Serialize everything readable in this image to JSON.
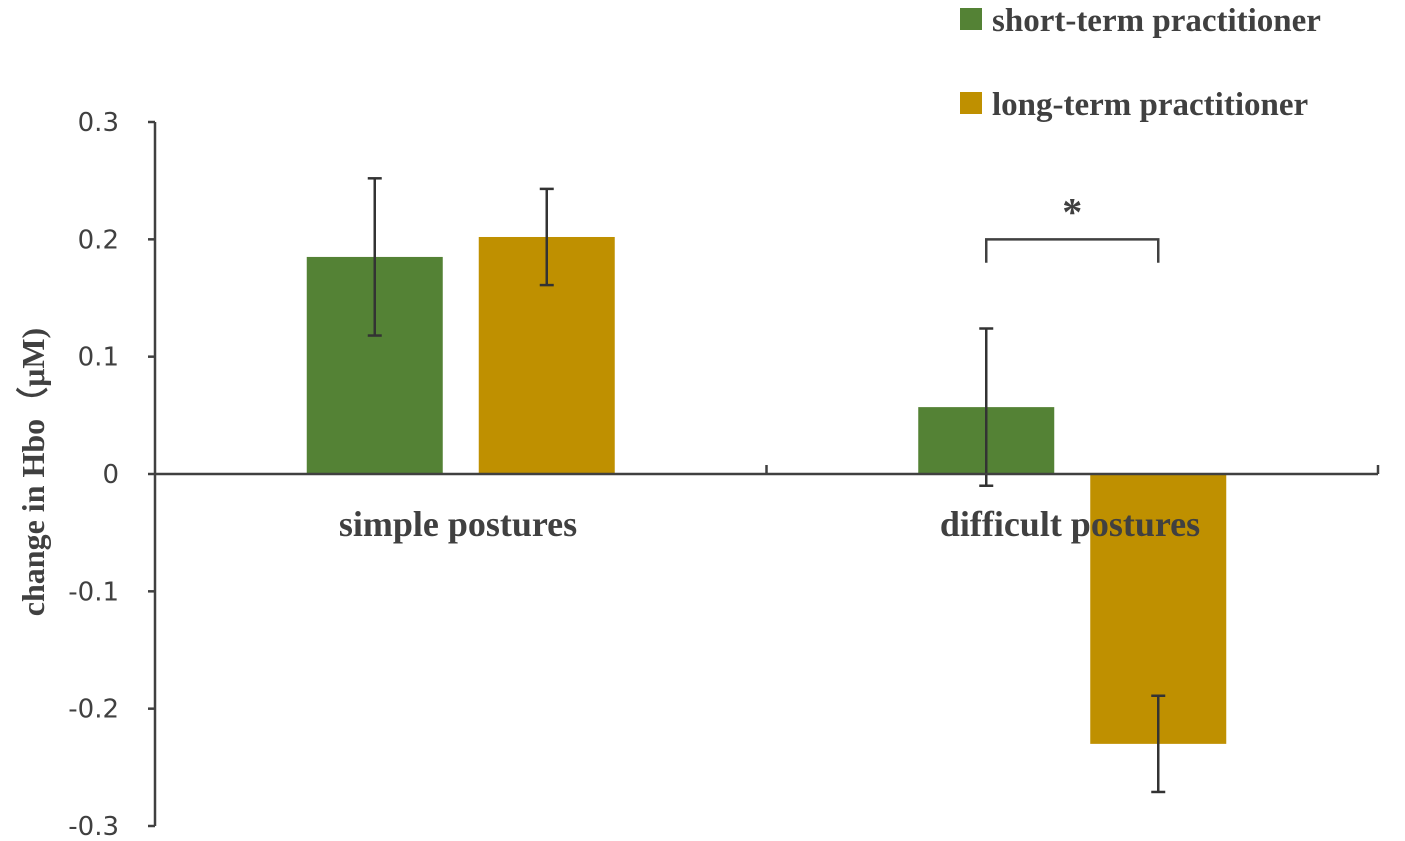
{
  "chart_data": {
    "type": "bar",
    "categories": [
      "simple postures",
      "difficult postures"
    ],
    "series": [
      {
        "name": "short-term practitioner",
        "color": "#548235",
        "values": [
          0.185,
          0.057
        ],
        "error": [
          0.067,
          0.067
        ]
      },
      {
        "name": "long-term practitioner",
        "color": "#BF9000",
        "values": [
          0.202,
          -0.23
        ],
        "error": [
          0.041,
          0.041
        ]
      }
    ],
    "ylabel": "change in Hbo（μM)",
    "xlabel": "",
    "ylim": [
      -0.3,
      0.3
    ],
    "yticks": [
      "0.3",
      "0.2",
      "0.1",
      "0",
      "-0.1",
      "-0.2",
      "-0.3"
    ],
    "ytick_values": [
      0.3,
      0.2,
      0.1,
      0,
      -0.1,
      -0.2,
      -0.3
    ],
    "legend_position": "top-right",
    "grid": false,
    "annotations": [
      {
        "text": "*",
        "category": "difficult postures",
        "between": [
          "short-term practitioner",
          "long-term practitioner"
        ]
      }
    ]
  }
}
